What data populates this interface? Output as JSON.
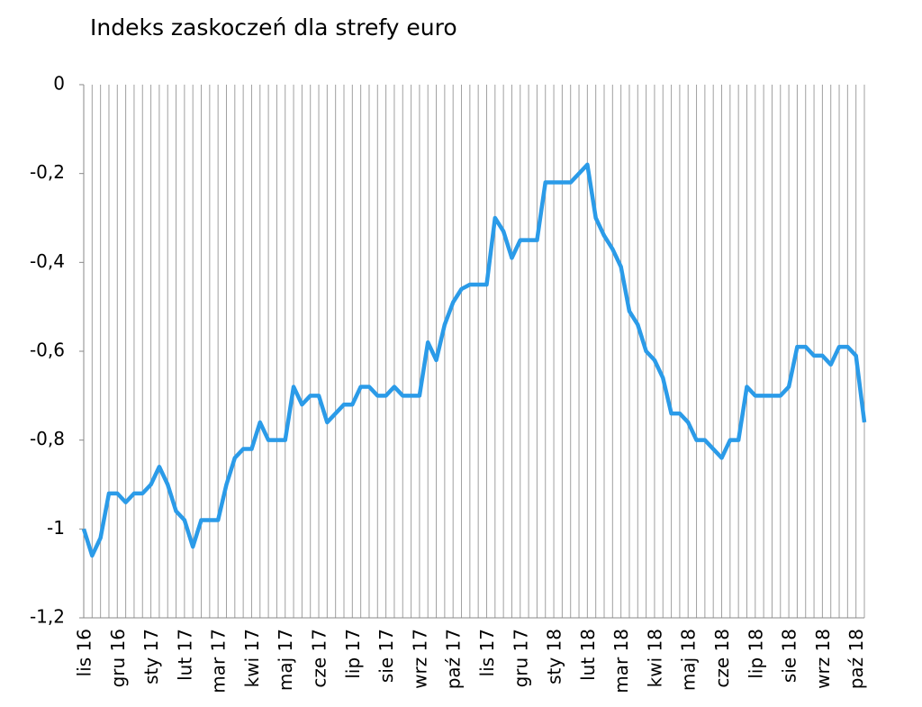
{
  "chart_data": {
    "type": "line",
    "title": "Indeks zaskoczeń dla strefy euro",
    "categories": [
      "lis 16",
      null,
      null,
      null,
      "gru 16",
      null,
      null,
      null,
      "sty 17",
      null,
      null,
      null,
      "lut 17",
      null,
      null,
      null,
      "mar 17",
      null,
      null,
      null,
      "kwi 17",
      null,
      null,
      null,
      "maj 17",
      null,
      null,
      null,
      "cze 17",
      null,
      null,
      null,
      "lip 17",
      null,
      null,
      null,
      "sie 17",
      null,
      null,
      null,
      "wrz 17",
      null,
      null,
      null,
      "paź 17",
      null,
      null,
      null,
      "lis 17",
      null,
      null,
      null,
      "gru 17",
      null,
      null,
      null,
      "sty 18",
      null,
      null,
      null,
      "lut 18",
      null,
      null,
      null,
      "mar 18",
      null,
      null,
      null,
      "kwi 18",
      null,
      null,
      null,
      "maj 18",
      null,
      null,
      null,
      "cze 18",
      null,
      null,
      null,
      "lip 18",
      null,
      null,
      null,
      "sie 18",
      null,
      null,
      null,
      "wrz 18",
      null,
      null,
      null,
      "paź 18",
      null
    ],
    "values": [
      -1.0,
      -1.06,
      -1.02,
      -0.92,
      -0.92,
      -0.94,
      -0.92,
      -0.92,
      -0.9,
      -0.86,
      -0.9,
      -0.96,
      -0.98,
      -1.04,
      -0.98,
      -0.98,
      -0.98,
      -0.9,
      -0.84,
      -0.82,
      -0.82,
      -0.76,
      -0.8,
      -0.8,
      -0.8,
      -0.68,
      -0.72,
      -0.7,
      -0.7,
      -0.76,
      -0.74,
      -0.72,
      -0.72,
      -0.68,
      -0.68,
      -0.7,
      -0.7,
      -0.68,
      -0.7,
      -0.7,
      -0.7,
      -0.58,
      -0.62,
      -0.54,
      -0.49,
      -0.46,
      -0.45,
      -0.45,
      -0.45,
      -0.3,
      -0.33,
      -0.39,
      -0.35,
      -0.35,
      -0.35,
      -0.22,
      -0.22,
      -0.22,
      -0.22,
      -0.2,
      -0.18,
      -0.3,
      -0.34,
      -0.37,
      -0.41,
      -0.51,
      -0.54,
      -0.6,
      -0.62,
      -0.66,
      -0.74,
      -0.74,
      -0.76,
      -0.8,
      -0.8,
      -0.82,
      -0.84,
      -0.8,
      -0.8,
      -0.68,
      -0.7,
      -0.7,
      -0.7,
      -0.7,
      -0.68,
      -0.59,
      -0.59,
      -0.61,
      -0.61,
      -0.63,
      -0.59,
      -0.59,
      -0.61,
      -0.76
    ],
    "color": "#2b9be8",
    "ylim": [
      -1.2,
      0
    ],
    "yticks": [
      {
        "value": -1.2,
        "label": "-1,2"
      },
      -1,
      {
        "value": -0.8,
        "label": "-0,8"
      },
      {
        "value": -0.6,
        "label": "-0,6"
      },
      {
        "value": -0.4,
        "label": "-0,4"
      },
      {
        "value": -0.2,
        "label": "-0,2"
      },
      0
    ],
    "grid": "vertical"
  }
}
